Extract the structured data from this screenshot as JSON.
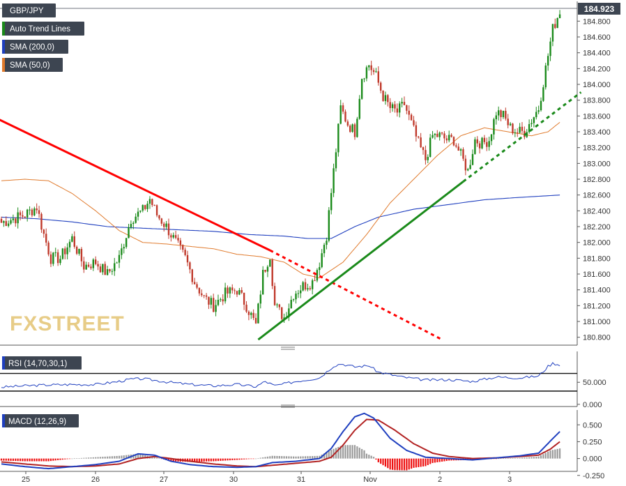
{
  "chart_data": [
    {
      "type": "candlestick",
      "panel": "price",
      "title": "GBP/JPY",
      "last_price": "184.923",
      "x_labels": [
        "25",
        "26",
        "27",
        "30",
        "31",
        "Nov",
        "2",
        "3"
      ],
      "ylim": [
        180.7,
        185.05
      ],
      "y_ticks": [
        "180.800",
        "181.000",
        "181.200",
        "181.400",
        "181.600",
        "181.800",
        "182.000",
        "182.200",
        "182.400",
        "182.600",
        "182.800",
        "183.000",
        "183.200",
        "183.400",
        "183.600",
        "183.800",
        "184.000",
        "184.200",
        "184.400",
        "184.600",
        "184.800"
      ],
      "close_anchors": [
        [
          0,
          182.25
        ],
        [
          5,
          182.3
        ],
        [
          10,
          182.35
        ],
        [
          15,
          182.45
        ],
        [
          18,
          182.1
        ],
        [
          21,
          181.8
        ],
        [
          25,
          181.8
        ],
        [
          30,
          182.05
        ],
        [
          35,
          181.7
        ],
        [
          40,
          181.75
        ],
        [
          45,
          181.6
        ],
        [
          50,
          181.8
        ],
        [
          55,
          182.3
        ],
        [
          60,
          182.4
        ],
        [
          63,
          182.55
        ],
        [
          66,
          182.35
        ],
        [
          70,
          182.2
        ],
        [
          74,
          182.0
        ],
        [
          78,
          181.8
        ],
        [
          82,
          181.5
        ],
        [
          86,
          181.3
        ],
        [
          90,
          181.2
        ],
        [
          95,
          181.35
        ],
        [
          100,
          181.4
        ],
        [
          104,
          181.2
        ],
        [
          108,
          180.95
        ],
        [
          111,
          181.6
        ],
        [
          114,
          181.85
        ],
        [
          116,
          181.2
        ],
        [
          120,
          181.05
        ],
        [
          124,
          181.35
        ],
        [
          128,
          181.45
        ],
        [
          132,
          181.5
        ],
        [
          135,
          181.75
        ],
        [
          138,
          182.1
        ],
        [
          141,
          182.9
        ],
        [
          144,
          183.7
        ],
        [
          147,
          183.5
        ],
        [
          150,
          183.4
        ],
        [
          153,
          184.1
        ],
        [
          156,
          184.25
        ],
        [
          159,
          184.1
        ],
        [
          162,
          183.85
        ],
        [
          165,
          183.7
        ],
        [
          168,
          183.65
        ],
        [
          171,
          183.75
        ],
        [
          174,
          183.5
        ],
        [
          177,
          183.25
        ],
        [
          180,
          183.05
        ],
        [
          183,
          183.35
        ],
        [
          186,
          183.35
        ],
        [
          189,
          183.3
        ],
        [
          192,
          183.3
        ],
        [
          195,
          183.1
        ],
        [
          198,
          182.9
        ],
        [
          201,
          183.3
        ],
        [
          204,
          183.25
        ],
        [
          207,
          183.3
        ],
        [
          210,
          183.65
        ],
        [
          213,
          183.6
        ],
        [
          216,
          183.45
        ],
        [
          219,
          183.4
        ],
        [
          222,
          183.4
        ],
        [
          225,
          183.55
        ],
        [
          228,
          183.7
        ],
        [
          231,
          184.2
        ],
        [
          234,
          184.7
        ],
        [
          237,
          184.93
        ]
      ],
      "overlays": [
        {
          "name": "SMA (200,0)",
          "color": "#1f3fbf",
          "anchors": [
            [
              0,
              182.32
            ],
            [
              15,
              182.3
            ],
            [
              30,
              182.26
            ],
            [
              45,
              182.2
            ],
            [
              60,
              182.18
            ],
            [
              75,
              182.16
            ],
            [
              90,
              182.14
            ],
            [
              105,
              182.1
            ],
            [
              120,
              182.08
            ],
            [
              130,
              182.05
            ],
            [
              140,
              182.05
            ],
            [
              150,
              182.2
            ],
            [
              160,
              182.32
            ],
            [
              175,
              182.42
            ],
            [
              190,
              182.48
            ],
            [
              205,
              182.54
            ],
            [
              220,
              182.57
            ],
            [
              237,
              182.6
            ]
          ]
        },
        {
          "name": "SMA (50,0)",
          "color": "#e07a2c",
          "anchors": [
            [
              0,
              182.78
            ],
            [
              10,
              182.8
            ],
            [
              20,
              182.78
            ],
            [
              30,
              182.62
            ],
            [
              40,
              182.4
            ],
            [
              50,
              182.15
            ],
            [
              60,
              182.0
            ],
            [
              70,
              181.98
            ],
            [
              80,
              181.95
            ],
            [
              90,
              181.92
            ],
            [
              100,
              181.85
            ],
            [
              110,
              181.82
            ],
            [
              120,
              181.75
            ],
            [
              128,
              181.6
            ],
            [
              135,
              181.55
            ],
            [
              145,
              181.75
            ],
            [
              155,
              182.1
            ],
            [
              165,
              182.5
            ],
            [
              175,
              182.8
            ],
            [
              185,
              183.1
            ],
            [
              195,
              183.35
            ],
            [
              205,
              183.45
            ],
            [
              215,
              183.4
            ],
            [
              225,
              183.35
            ],
            [
              232,
              183.4
            ],
            [
              237,
              183.52
            ]
          ]
        }
      ],
      "trend_lines": [
        {
          "name": "Auto Trend Lines",
          "color": "#ff0000",
          "solid": [
            [
              -2,
              183.57
            ],
            [
              114,
              181.9
            ]
          ],
          "dashed": [
            [
              114,
              181.9
            ],
            [
              187,
              180.77
            ]
          ]
        },
        {
          "name": "Auto Trend Lines",
          "color": "#1a8a1a",
          "solid": [
            [
              109,
              180.77
            ],
            [
              196,
              182.77
            ]
          ],
          "dashed": [
            [
              196,
              182.77
            ],
            [
              246,
              183.9
            ]
          ]
        }
      ],
      "legend": [
        {
          "label": "GBP/JPY",
          "color": "#3d4551"
        },
        {
          "label": "Auto Trend Lines",
          "color": "#1a8a1a"
        },
        {
          "label": "SMA (200,0)",
          "color": "#1f3fbf"
        },
        {
          "label": "SMA (50,0)",
          "color": "#e07a2c"
        }
      ],
      "watermark": "FXSTREET",
      "up_color": "#1a8a1a",
      "down_color": "#c0392b"
    },
    {
      "type": "line",
      "panel": "rsi",
      "title": "RSI (14,70,30,1)",
      "ylim": [
        -5,
        120
      ],
      "levels": [
        70,
        30
      ],
      "y_ticks": [
        "50.000",
        "0.000"
      ],
      "color": "#1f3fbf",
      "anchors": [
        [
          0,
          39
        ],
        [
          10,
          42
        ],
        [
          20,
          44
        ],
        [
          30,
          45
        ],
        [
          40,
          45
        ],
        [
          50,
          52
        ],
        [
          55,
          57
        ],
        [
          60,
          58
        ],
        [
          70,
          51
        ],
        [
          80,
          45
        ],
        [
          90,
          42
        ],
        [
          100,
          45
        ],
        [
          108,
          40
        ],
        [
          112,
          52
        ],
        [
          116,
          42
        ],
        [
          125,
          52
        ],
        [
          135,
          60
        ],
        [
          141,
          87
        ],
        [
          144,
          92
        ],
        [
          150,
          85
        ],
        [
          156,
          88
        ],
        [
          160,
          73
        ],
        [
          170,
          62
        ],
        [
          180,
          55
        ],
        [
          190,
          56
        ],
        [
          200,
          52
        ],
        [
          210,
          62
        ],
        [
          220,
          60
        ],
        [
          228,
          64
        ],
        [
          232,
          86
        ],
        [
          234,
          93
        ],
        [
          237,
          90
        ]
      ]
    },
    {
      "type": "bar+line",
      "panel": "macd",
      "title": "MACD (12,26,9)",
      "ylim": [
        -0.19,
        0.72
      ],
      "y_ticks": [
        "0.500",
        "0.250",
        "0.000",
        "-0.250"
      ],
      "macd_color": "#1f3fbf",
      "signal_color": "#b22222",
      "hist_pos_color": "#9a9a9a",
      "hist_neg_color": "#ee1111",
      "macd_anchors": [
        [
          0,
          -0.08
        ],
        [
          10,
          -0.12
        ],
        [
          20,
          -0.15
        ],
        [
          30,
          -0.12
        ],
        [
          40,
          -0.09
        ],
        [
          50,
          -0.04
        ],
        [
          58,
          0.07
        ],
        [
          65,
          0.05
        ],
        [
          72,
          -0.04
        ],
        [
          80,
          -0.09
        ],
        [
          90,
          -0.12
        ],
        [
          100,
          -0.13
        ],
        [
          108,
          -0.12
        ],
        [
          115,
          -0.06
        ],
        [
          125,
          -0.04
        ],
        [
          135,
          0.0
        ],
        [
          140,
          0.15
        ],
        [
          145,
          0.4
        ],
        [
          150,
          0.62
        ],
        [
          154,
          0.67
        ],
        [
          158,
          0.6
        ],
        [
          165,
          0.3
        ],
        [
          172,
          0.12
        ],
        [
          180,
          0.02
        ],
        [
          190,
          0.0
        ],
        [
          200,
          -0.02
        ],
        [
          210,
          0.01
        ],
        [
          220,
          0.04
        ],
        [
          228,
          0.08
        ],
        [
          233,
          0.26
        ],
        [
          237,
          0.4
        ]
      ],
      "signal_anchors": [
        [
          0,
          -0.05
        ],
        [
          10,
          -0.08
        ],
        [
          20,
          -0.11
        ],
        [
          30,
          -0.12
        ],
        [
          40,
          -0.11
        ],
        [
          50,
          -0.08
        ],
        [
          58,
          0.0
        ],
        [
          65,
          0.03
        ],
        [
          72,
          0.0
        ],
        [
          80,
          -0.04
        ],
        [
          90,
          -0.08
        ],
        [
          100,
          -0.11
        ],
        [
          108,
          -0.12
        ],
        [
          115,
          -0.1
        ],
        [
          125,
          -0.07
        ],
        [
          135,
          -0.04
        ],
        [
          140,
          0.02
        ],
        [
          145,
          0.2
        ],
        [
          150,
          0.42
        ],
        [
          155,
          0.58
        ],
        [
          160,
          0.57
        ],
        [
          167,
          0.42
        ],
        [
          175,
          0.22
        ],
        [
          183,
          0.08
        ],
        [
          190,
          0.03
        ],
        [
          200,
          0.0
        ],
        [
          210,
          0.01
        ],
        [
          220,
          0.03
        ],
        [
          228,
          0.05
        ],
        [
          233,
          0.14
        ],
        [
          237,
          0.25
        ]
      ]
    }
  ]
}
